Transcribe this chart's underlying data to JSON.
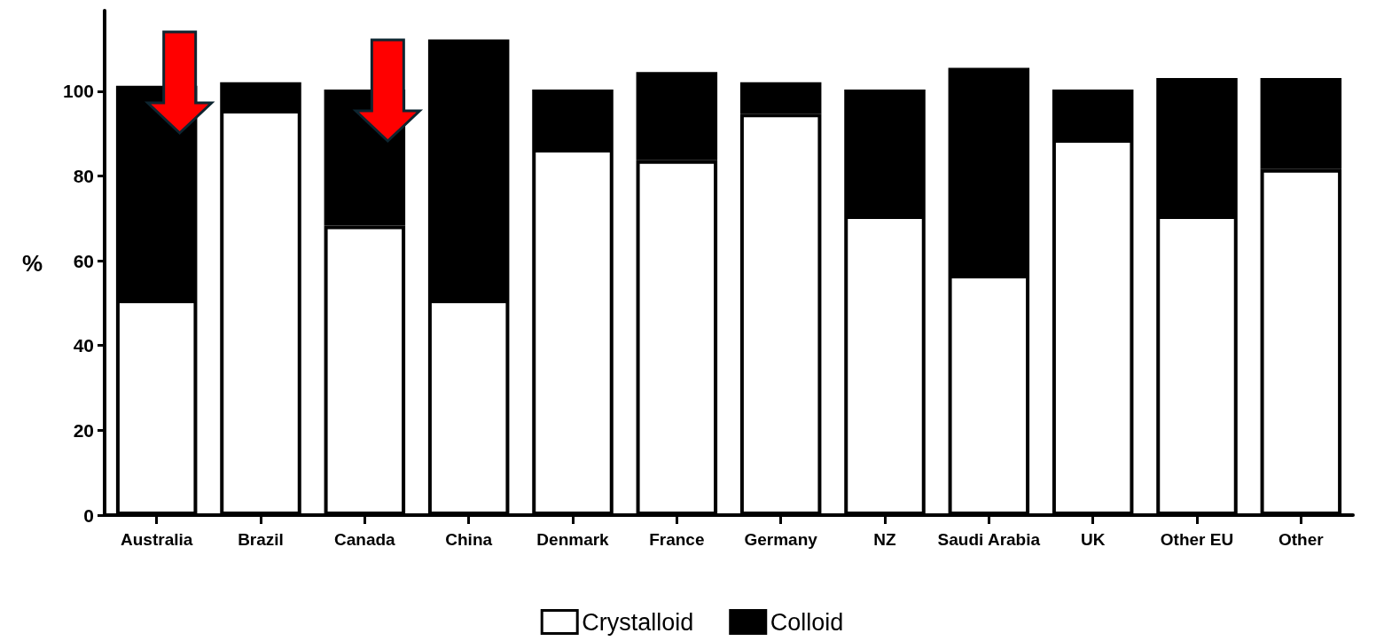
{
  "chart_data": {
    "type": "bar",
    "stacked": true,
    "ylabel": "%",
    "categories": [
      "Australia",
      "Brazil",
      "Canada",
      "China",
      "Denmark",
      "France",
      "Germany",
      "NZ",
      "Saudi Arabia",
      "UK",
      "Other EU",
      "Other"
    ],
    "series": [
      {
        "name": "Crystalloid",
        "color": "#ffffff",
        "values": [
          50.8,
          95.6,
          68.3,
          50.8,
          86.4,
          83.7,
          94.7,
          70.7,
          56.7,
          88.7,
          70.7,
          81.6
        ]
      },
      {
        "name": "Colloid",
        "color": "#000000",
        "values": [
          50.5,
          6.5,
          32.1,
          61.4,
          14.0,
          20.8,
          7.4,
          29.7,
          48.8,
          11.7,
          32.4,
          21.5
        ]
      }
    ],
    "ylim": [
      0,
      119
    ],
    "yticks": [
      0,
      20,
      40,
      60,
      80,
      100
    ],
    "grid": false,
    "legend": "bottom"
  }
}
